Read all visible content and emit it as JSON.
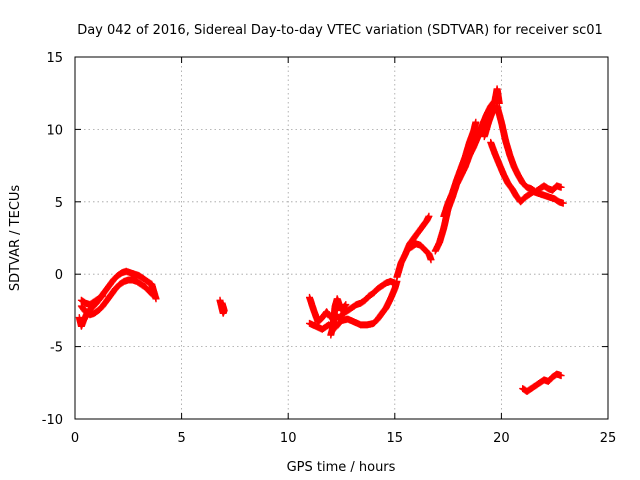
{
  "chart_data": {
    "type": "scatter",
    "title": "Day 042 of 2016, Sidereal Day-to-day VTEC variation (SDTVAR) for receiver sc01",
    "xlabel": "GPS time / hours",
    "ylabel": "SDTVAR / TECUs",
    "xlim": [
      0,
      25
    ],
    "ylim": [
      -10,
      15
    ],
    "xticks": [
      0,
      5,
      10,
      15,
      20,
      25
    ],
    "yticks": [
      -10,
      -5,
      0,
      5,
      10,
      15
    ],
    "x_tick_labels": [
      "0",
      "5",
      "10",
      "15",
      "20",
      "25"
    ],
    "y_tick_labels": [
      "-10",
      "-5",
      "0",
      "5",
      "10",
      "15"
    ],
    "grid": true,
    "marker": "+",
    "series": [
      {
        "name": "sc01",
        "color": "#ff0000",
        "segments": [
          [
            [
              0.2,
              -3.0
            ],
            [
              0.3,
              -3.6
            ],
            [
              0.4,
              -3.2
            ],
            [
              0.6,
              -2.6
            ],
            [
              0.8,
              -2.3
            ],
            [
              1.0,
              -2.0
            ],
            [
              1.2,
              -1.6
            ],
            [
              1.4,
              -1.2
            ],
            [
              1.6,
              -0.8
            ],
            [
              1.8,
              -0.4
            ],
            [
              2.0,
              -0.1
            ],
            [
              2.2,
              0.1
            ],
            [
              2.4,
              0.2
            ],
            [
              2.6,
              0.1
            ],
            [
              2.8,
              0.0
            ],
            [
              3.0,
              -0.1
            ],
            [
              3.2,
              -0.3
            ],
            [
              3.4,
              -0.5
            ],
            [
              3.6,
              -0.7
            ],
            [
              3.7,
              -1.2
            ],
            [
              3.8,
              -1.7
            ]
          ],
          [
            [
              0.3,
              -2.2
            ],
            [
              0.5,
              -2.6
            ],
            [
              0.7,
              -2.8
            ],
            [
              0.9,
              -2.7
            ],
            [
              1.1,
              -2.5
            ],
            [
              1.3,
              -2.2
            ],
            [
              1.5,
              -1.8
            ],
            [
              1.7,
              -1.4
            ],
            [
              1.9,
              -1.0
            ],
            [
              2.1,
              -0.7
            ],
            [
              2.3,
              -0.5
            ],
            [
              2.5,
              -0.4
            ],
            [
              2.7,
              -0.4
            ],
            [
              2.9,
              -0.5
            ],
            [
              3.1,
              -0.7
            ],
            [
              3.3,
              -0.9
            ],
            [
              3.5,
              -1.2
            ],
            [
              3.7,
              -1.5
            ]
          ],
          [
            [
              0.3,
              -1.8
            ],
            [
              0.5,
              -2.0
            ],
            [
              0.7,
              -2.1
            ],
            [
              0.9,
              -1.9
            ],
            [
              1.1,
              -1.7
            ],
            [
              1.3,
              -1.5
            ]
          ],
          [
            [
              6.8,
              -1.8
            ],
            [
              6.85,
              -2.1
            ],
            [
              6.9,
              -2.4
            ],
            [
              6.95,
              -2.7
            ],
            [
              7.0,
              -2.5
            ],
            [
              6.9,
              -2.0
            ]
          ],
          [
            [
              11.0,
              -1.6
            ],
            [
              11.2,
              -2.5
            ],
            [
              11.4,
              -3.3
            ],
            [
              11.6,
              -3.0
            ],
            [
              11.8,
              -2.6
            ],
            [
              12.0,
              -3.0
            ],
            [
              12.2,
              -2.9
            ],
            [
              12.4,
              -3.0
            ],
            [
              12.6,
              -2.7
            ],
            [
              12.8,
              -2.5
            ],
            [
              13.0,
              -2.3
            ],
            [
              13.2,
              -2.1
            ],
            [
              13.4,
              -2.0
            ],
            [
              13.6,
              -1.8
            ],
            [
              13.8,
              -1.5
            ],
            [
              14.0,
              -1.3
            ],
            [
              14.2,
              -1.0
            ],
            [
              14.4,
              -0.8
            ],
            [
              14.6,
              -0.6
            ],
            [
              14.8,
              -0.5
            ],
            [
              15.0,
              -0.6
            ]
          ],
          [
            [
              11.0,
              -3.4
            ],
            [
              11.3,
              -3.6
            ],
            [
              11.6,
              -3.8
            ],
            [
              11.9,
              -3.5
            ],
            [
              12.2,
              -3.7
            ],
            [
              12.5,
              -3.2
            ],
            [
              12.8,
              -3.1
            ],
            [
              13.1,
              -3.3
            ],
            [
              13.4,
              -3.5
            ],
            [
              13.7,
              -3.5
            ],
            [
              14.0,
              -3.4
            ],
            [
              14.2,
              -3.1
            ],
            [
              14.4,
              -2.7
            ],
            [
              14.6,
              -2.3
            ],
            [
              14.8,
              -1.7
            ],
            [
              15.0,
              -1.0
            ],
            [
              15.1,
              -0.5
            ]
          ],
          [
            [
              12.0,
              -4.2
            ],
            [
              12.1,
              -3.6
            ],
            [
              12.2,
              -2.2
            ],
            [
              12.3,
              -1.7
            ],
            [
              12.5,
              -2.5
            ],
            [
              12.7,
              -2.1
            ]
          ],
          [
            [
              15.1,
              -0.2
            ],
            [
              15.3,
              0.8
            ],
            [
              15.5,
              1.4
            ],
            [
              15.7,
              2.1
            ],
            [
              15.9,
              2.5
            ],
            [
              16.1,
              2.9
            ],
            [
              16.3,
              3.3
            ],
            [
              16.5,
              3.7
            ],
            [
              16.6,
              4.0
            ]
          ],
          [
            [
              15.6,
              1.7
            ],
            [
              15.8,
              1.9
            ],
            [
              16.0,
              2.1
            ],
            [
              16.2,
              2.0
            ],
            [
              16.4,
              1.7
            ],
            [
              16.6,
              1.4
            ],
            [
              16.7,
              1.0
            ]
          ],
          [
            [
              16.9,
              1.6
            ],
            [
              17.1,
              2.2
            ],
            [
              17.3,
              3.2
            ],
            [
              17.5,
              4.5
            ],
            [
              17.7,
              5.3
            ],
            [
              17.9,
              6.2
            ],
            [
              18.1,
              6.8
            ],
            [
              18.3,
              7.4
            ],
            [
              18.5,
              8.2
            ],
            [
              18.7,
              8.8
            ],
            [
              18.9,
              9.5
            ],
            [
              19.1,
              10.3
            ],
            [
              19.3,
              11.0
            ],
            [
              19.5,
              11.6
            ],
            [
              19.7,
              12.0
            ],
            [
              19.8,
              12.8
            ],
            [
              19.9,
              11.8
            ]
          ],
          [
            [
              17.3,
              4.0
            ],
            [
              17.5,
              4.9
            ],
            [
              17.7,
              5.6
            ],
            [
              17.9,
              6.5
            ],
            [
              18.1,
              7.3
            ],
            [
              18.3,
              8.1
            ],
            [
              18.5,
              9.1
            ],
            [
              18.7,
              9.9
            ],
            [
              18.8,
              10.5
            ]
          ],
          [
            [
              19.2,
              9.5
            ],
            [
              19.4,
              10.5
            ],
            [
              19.6,
              11.3
            ],
            [
              19.8,
              11.6
            ],
            [
              20.0,
              10.5
            ],
            [
              20.2,
              9.2
            ],
            [
              20.4,
              8.2
            ],
            [
              20.6,
              7.4
            ],
            [
              20.8,
              6.8
            ],
            [
              21.0,
              6.3
            ],
            [
              21.2,
              6.0
            ],
            [
              21.4,
              5.9
            ],
            [
              21.6,
              5.7
            ],
            [
              21.8,
              5.9
            ],
            [
              22.0,
              6.1
            ],
            [
              22.2,
              5.9
            ],
            [
              22.4,
              5.8
            ],
            [
              22.6,
              6.1
            ],
            [
              22.8,
              6.0
            ]
          ],
          [
            [
              19.5,
              9.1
            ],
            [
              19.7,
              8.3
            ],
            [
              19.9,
              7.6
            ],
            [
              20.1,
              6.9
            ],
            [
              20.3,
              6.3
            ],
            [
              20.5,
              5.9
            ],
            [
              20.7,
              5.4
            ],
            [
              20.9,
              5.0
            ],
            [
              21.1,
              5.3
            ],
            [
              21.3,
              5.5
            ],
            [
              21.5,
              5.7
            ],
            [
              21.7,
              5.6
            ],
            [
              21.9,
              5.5
            ],
            [
              22.1,
              5.4
            ],
            [
              22.3,
              5.3
            ],
            [
              22.5,
              5.2
            ],
            [
              22.7,
              5.0
            ],
            [
              22.9,
              4.9
            ]
          ],
          [
            [
              21.0,
              -7.9
            ],
            [
              21.2,
              -8.1
            ],
            [
              21.4,
              -7.9
            ],
            [
              21.6,
              -7.7
            ],
            [
              21.8,
              -7.5
            ],
            [
              22.0,
              -7.3
            ],
            [
              22.2,
              -7.4
            ],
            [
              22.4,
              -7.1
            ],
            [
              22.6,
              -6.9
            ],
            [
              22.8,
              -7.0
            ]
          ]
        ]
      }
    ]
  }
}
